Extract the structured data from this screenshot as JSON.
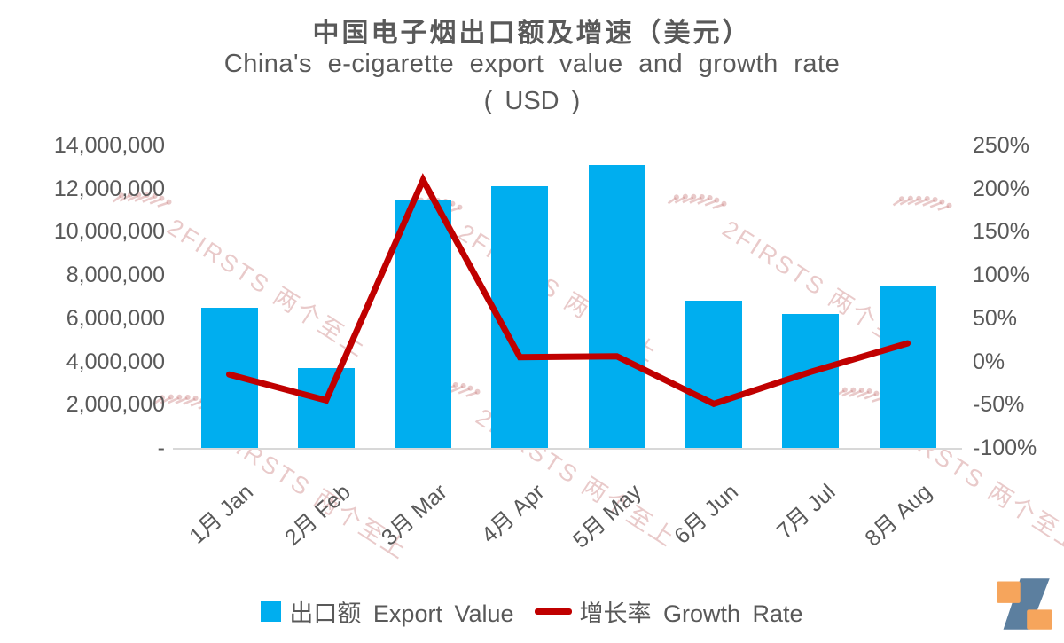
{
  "title": {
    "line1_zh": "中国电子烟出口额及增速（美元）",
    "line2_en": "China's e-cigarette export value and growth rate",
    "line3_unit": "( USD )"
  },
  "chart_data": {
    "type": "combo bar+line, dual y-axis",
    "categories": [
      "1月 Jan",
      "2月 Feb",
      "3月 Mar",
      "4月 Apr",
      "5月 May",
      "6月 Jun",
      "7月 Jul",
      "8月 Aug"
    ],
    "series": [
      {
        "name": "出口额 Export Value",
        "type": "bar",
        "axis": "left",
        "color": "#00AEEF",
        "values": [
          6500000,
          3700000,
          11500000,
          12100000,
          13100000,
          6800000,
          6200000,
          7500000
        ]
      },
      {
        "name": "增长率 Growth Rate",
        "type": "line",
        "axis": "right",
        "color": "#C00000",
        "values_pct": [
          -15,
          -45,
          210,
          5,
          6,
          -49,
          -12,
          21
        ]
      }
    ],
    "left_axis": {
      "min": 0,
      "max": 14000000,
      "ticks": [
        "14,000,000",
        "12,000,000",
        "10,000,000",
        "8,000,000",
        "6,000,000",
        "4,000,000",
        "2,000,000",
        "-"
      ]
    },
    "right_axis": {
      "min_pct": -100,
      "max_pct": 250,
      "ticks": [
        "250%",
        "200%",
        "150%",
        "100%",
        "50%",
        "0%",
        "-50%",
        "-100%"
      ]
    },
    "grid": "off",
    "legend_position": "bottom-center"
  },
  "legend": {
    "export_label": "出口额 Export Value",
    "growth_label": "增长率 Growth Rate"
  },
  "watermark": {
    "text": "2FIRSTS 两个至上"
  },
  "logo": {
    "name": "2Firsts",
    "orange": "#F6A55C",
    "slate": "#5C7F9F"
  },
  "text_color": "#595959"
}
